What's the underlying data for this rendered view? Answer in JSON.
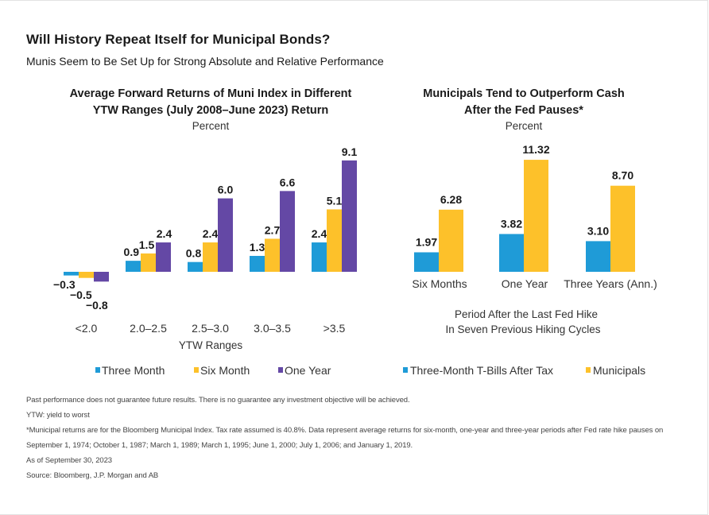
{
  "header": {
    "title": "Will History Repeat Itself for Municipal Bonds?",
    "subtitle": "Munis Seem to Be Set Up for Strong Absolute and Relative Performance"
  },
  "colors": {
    "three_month": "#1f9bd7",
    "six_month": "#fdc12a",
    "one_year": "#6448a5",
    "tbills": "#1f9bd7",
    "municipals": "#fdc12a"
  },
  "chart_data": [
    {
      "type": "bar",
      "title_line1": "Average Forward Returns of Muni Index in Different",
      "title_line2": "YTW Ranges (July 2008–June 2023) Return",
      "unit": "Percent",
      "xlabel": "YTW Ranges",
      "categories": [
        "<2.0",
        "2.0–2.5",
        "2.5–3.0",
        "3.0–3.5",
        ">3.5"
      ],
      "series": [
        {
          "name": "Three Month",
          "values": [
            -0.3,
            0.9,
            0.8,
            1.3,
            2.4
          ]
        },
        {
          "name": "Six Month",
          "values": [
            -0.5,
            1.5,
            2.4,
            2.7,
            5.1
          ]
        },
        {
          "name": "One Year",
          "values": [
            -0.8,
            2.4,
            6.0,
            6.6,
            9.1
          ]
        }
      ],
      "value_labels": [
        [
          "−0.3",
          "0.9",
          "0.8",
          "1.3",
          "2.4"
        ],
        [
          "−0.5",
          "1.5",
          "2.4",
          "2.7",
          "5.1"
        ],
        [
          "−0.8",
          "2.4",
          "6.0",
          "6.6",
          "9.1"
        ]
      ],
      "legend_position": "bottom"
    },
    {
      "type": "bar",
      "title_line1": "Municipals Tend to Outperform Cash",
      "title_line2": "After the Fed Pauses*",
      "unit": "Percent",
      "xlabel_line1": "Period After the Last Fed Hike",
      "xlabel_line2": "In Seven Previous Hiking Cycles",
      "categories": [
        "Six Months",
        "One Year",
        "Three Years (Ann.)"
      ],
      "series": [
        {
          "name": "Three-Month T-Bills After Tax",
          "values": [
            1.97,
            3.82,
            3.1
          ]
        },
        {
          "name": "Municipals",
          "values": [
            6.28,
            11.32,
            8.7
          ]
        }
      ],
      "value_labels": [
        [
          "1.97",
          "3.82",
          "3.10"
        ],
        [
          "6.28",
          "11.32",
          "8.70"
        ]
      ],
      "legend_position": "bottom"
    }
  ],
  "footnotes": {
    "disclaimer": "Past performance does not guarantee future results. There is no guarantee any investment objective will be achieved.",
    "ytw": "YTW: yield to worst",
    "note_line1": "*Municipal returns are for the Bloomberg Municipal Index. Tax rate assumed is 40.8%. Data represent average returns for six-month, one-year and three-year periods after Fed rate hike pauses on",
    "note_line2": "September 1, 1974; October 1, 1987; March 1, 1989; March 1, 1995; June 1, 2000; July 1, 2006; and January 1, 2019.",
    "as_of": "As of September 30, 2023",
    "source": "Source: Bloomberg, J.P. Morgan and AB"
  }
}
